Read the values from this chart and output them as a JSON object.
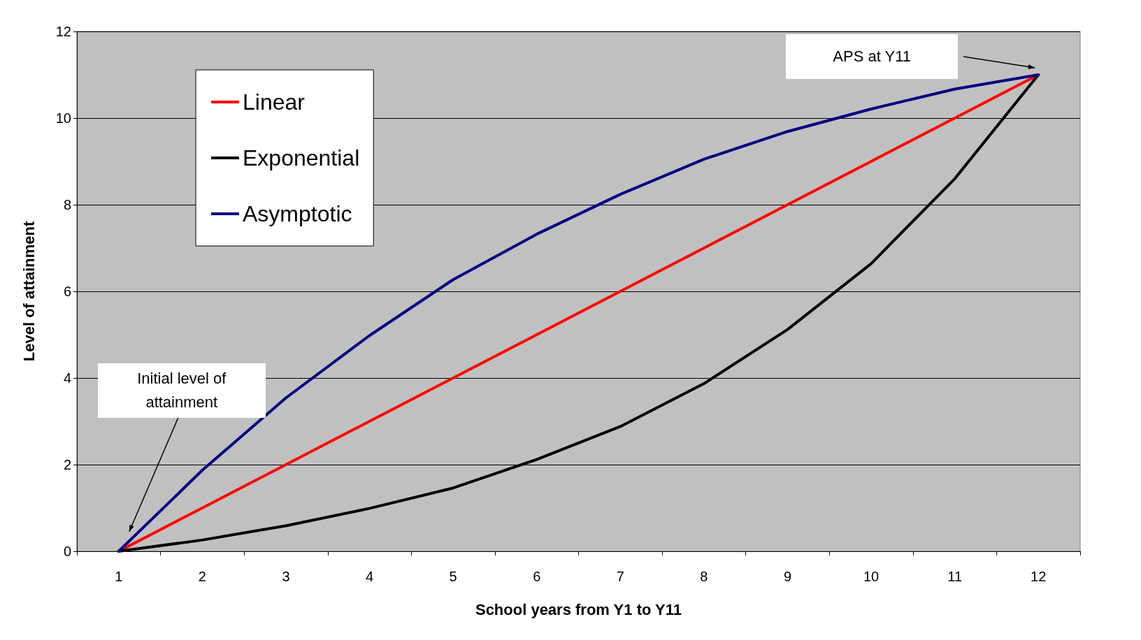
{
  "chart_data": {
    "type": "line",
    "xlabel": "School years from Y1 to Y11",
    "ylabel": "Level of attainment",
    "categories": [
      "1",
      "2",
      "3",
      "4",
      "5",
      "6",
      "7",
      "8",
      "9",
      "10",
      "11",
      "12"
    ],
    "series": [
      {
        "name": "Linear",
        "color": "#ff0000",
        "values": [
          0,
          1,
          2,
          3,
          4,
          5,
          6,
          7,
          8,
          9,
          10,
          11
        ]
      },
      {
        "name": "Exponential",
        "color": "#000000",
        "values": [
          0,
          0.26,
          0.59,
          0.99,
          1.46,
          2.12,
          2.88,
          3.87,
          5.12,
          6.64,
          8.6,
          11
        ]
      },
      {
        "name": "Asymptotic",
        "color": "#000080",
        "values": [
          0,
          1.87,
          3.54,
          4.98,
          6.27,
          7.32,
          8.24,
          9.05,
          9.69,
          10.21,
          10.67,
          11
        ]
      }
    ],
    "ylim": [
      0,
      12
    ],
    "yticks": [
      0,
      2,
      4,
      6,
      8,
      10,
      12
    ],
    "grid": "y",
    "legend": "top left",
    "marker": "none",
    "line_style": "solid",
    "annotations": [
      "Initial level of attainment",
      "APS at Y11"
    ]
  }
}
